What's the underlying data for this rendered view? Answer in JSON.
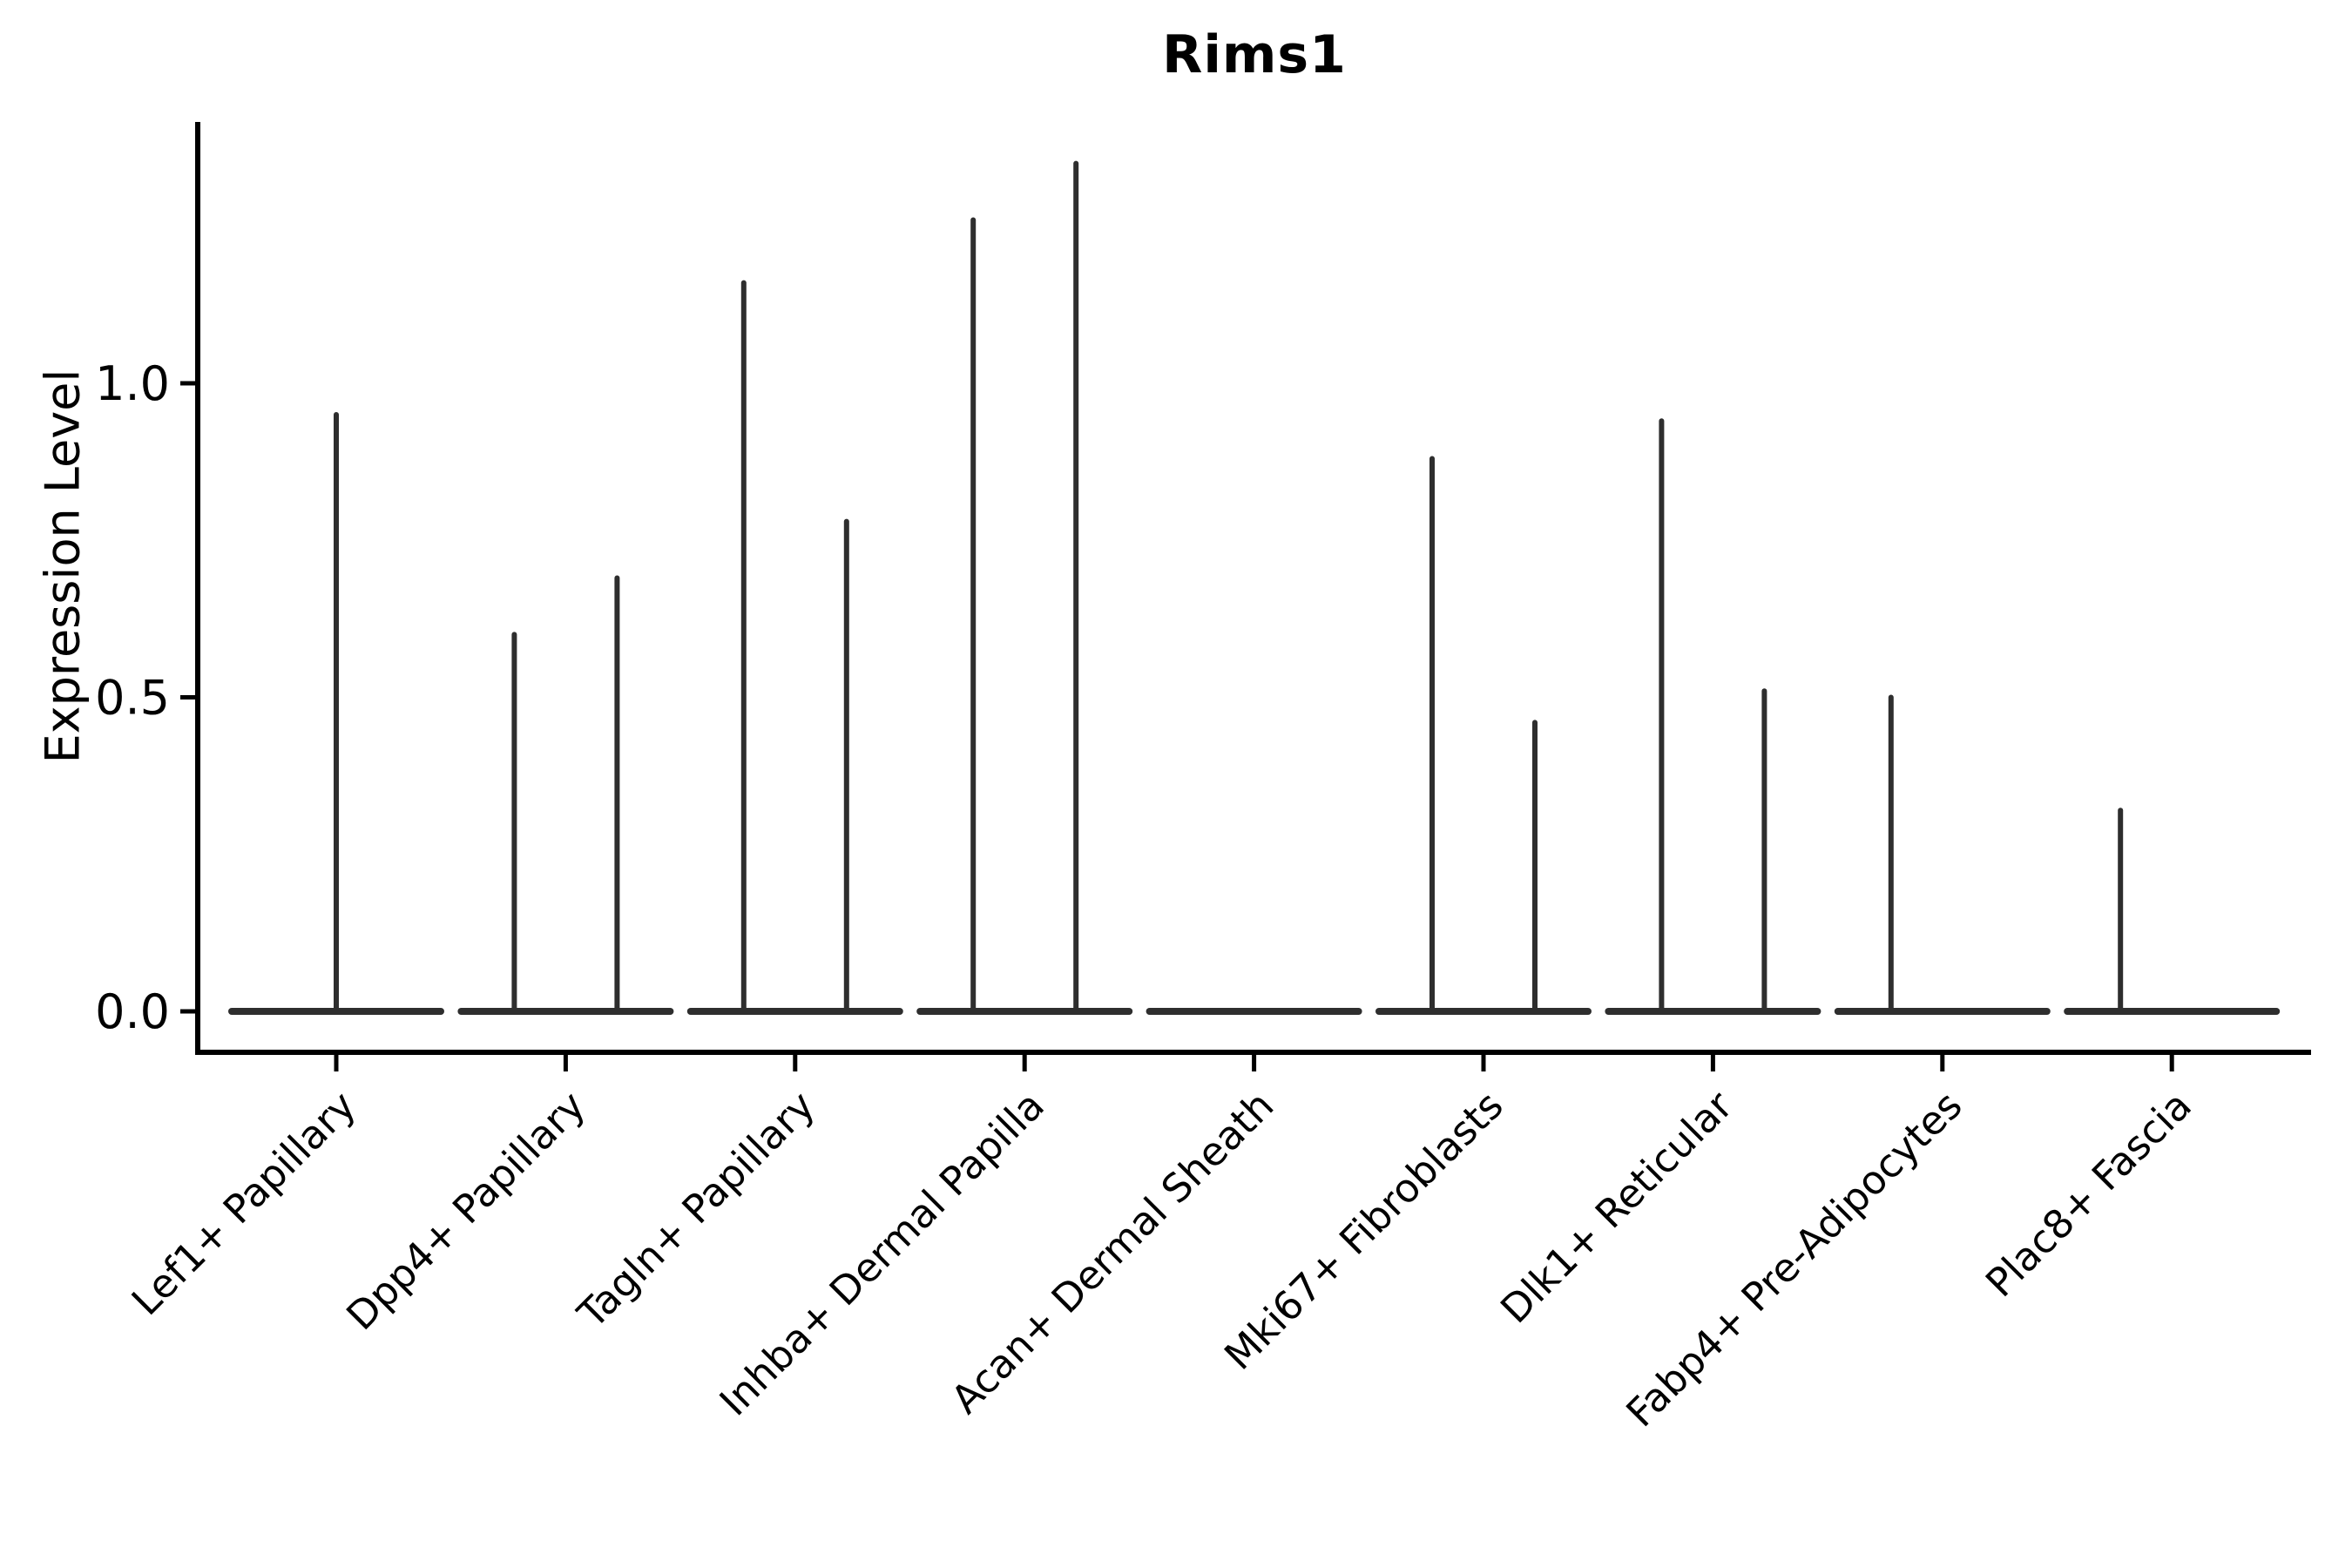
{
  "chart_data": {
    "type": "violin",
    "title": "Rims1",
    "xlabel": "",
    "ylabel": "Expression Level",
    "yticks": [
      {
        "value": 0.0,
        "label": "0.0"
      },
      {
        "value": 0.5,
        "label": "0.5"
      },
      {
        "value": 1.0,
        "label": "1.0"
      }
    ],
    "ylim": [
      -0.07,
      1.42
    ],
    "grid": false,
    "legend": "none",
    "categories": [
      "Lef1+ Papillary",
      "Dpp4+ Papillary",
      "Tagln+ Papillary",
      "Inhba+ Dermal Papilla",
      "Acan+ Dermal Sheath",
      "Mki67+ Fibroblasts",
      "Dlk1+ Reticular",
      "Fabp4+ Pre-Adipocytes",
      "Plac8+ Fascia"
    ],
    "violins": [
      {
        "category": "Lef1+ Papillary",
        "tails": [
          {
            "side": "center",
            "max": 0.95
          }
        ]
      },
      {
        "category": "Dpp4+ Papillary",
        "tails": [
          {
            "side": "left",
            "max": 0.6
          },
          {
            "side": "right",
            "max": 0.69
          }
        ]
      },
      {
        "category": "Tagln+ Papillary",
        "tails": [
          {
            "side": "left",
            "max": 1.16
          },
          {
            "side": "right",
            "max": 0.78
          }
        ]
      },
      {
        "category": "Inhba+ Dermal Papilla",
        "tails": [
          {
            "side": "left",
            "max": 1.26
          },
          {
            "side": "right",
            "max": 1.35
          }
        ]
      },
      {
        "category": "Acan+ Dermal Sheath",
        "tails": []
      },
      {
        "category": "Mki67+ Fibroblasts",
        "tails": [
          {
            "side": "left",
            "max": 0.88
          },
          {
            "side": "right",
            "max": 0.46
          }
        ]
      },
      {
        "category": "Dlk1+ Reticular",
        "tails": [
          {
            "side": "left",
            "max": 0.94
          },
          {
            "side": "right",
            "max": 0.51
          }
        ]
      },
      {
        "category": "Fabp4+ Pre-Adipocytes",
        "tails": [
          {
            "side": "left",
            "max": 0.5
          }
        ]
      },
      {
        "category": "Plac8+ Fascia",
        "tails": [
          {
            "side": "left",
            "max": 0.32
          }
        ]
      }
    ],
    "colors": {
      "violin_stroke": "#2e2e2e",
      "axis_stroke": "#000000",
      "text": "#000000",
      "background": "#ffffff"
    }
  }
}
